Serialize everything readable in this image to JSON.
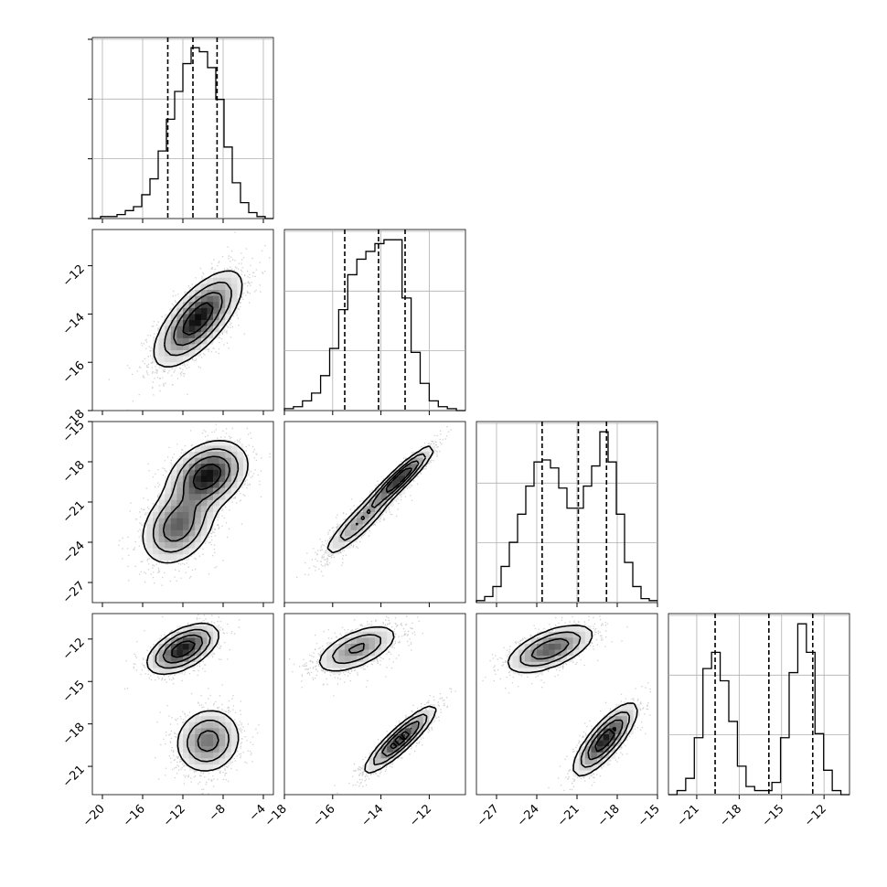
{
  "figure": {
    "title": "",
    "type": "corner plot"
  },
  "chart_data": {
    "type": "corner",
    "grid": true,
    "colors": {
      "hist": "#000000",
      "quantile": "#000000",
      "contour": "#000000",
      "density_dark": "#000000",
      "grid": "#b0b0b0",
      "points": "#555555"
    },
    "params": [
      {
        "name": "",
        "range": [
          -21,
          -3
        ],
        "ticks": [
          -20,
          -16,
          -12,
          -8,
          -4
        ],
        "tick_labels": [
          "−20",
          "−16",
          "−12",
          "−8",
          "−4"
        ],
        "quantiles": [
          -13.5,
          -11.0,
          -8.6
        ],
        "hist": [
          0,
          1,
          1,
          2,
          4,
          6,
          12,
          20,
          34,
          50,
          64,
          78,
          86,
          84,
          76,
          60,
          36,
          18,
          8,
          3,
          1,
          0
        ]
      },
      {
        "name": "",
        "range": [
          -18,
          -10.5
        ],
        "ticks": [
          -18,
          -16,
          -14,
          -12
        ],
        "tick_labels": [
          "−18",
          "−16",
          "−14",
          "−12"
        ],
        "quantiles": [
          -15.5,
          -14.1,
          -13.0
        ],
        "hist": [
          1,
          2,
          5,
          9,
          18,
          32,
          52,
          70,
          78,
          82,
          86,
          88,
          88,
          58,
          30,
          14,
          5,
          2,
          1,
          0
        ]
      },
      {
        "name": "",
        "range": [
          -28.5,
          -15
        ],
        "ticks": [
          -27,
          -24,
          -21,
          -18,
          -15
        ],
        "tick_labels": [
          "−27",
          "−24",
          "−21",
          "−18",
          "−15"
        ],
        "quantiles": [
          -23.6,
          -20.9,
          -18.8
        ],
        "hist": [
          1,
          3,
          8,
          18,
          30,
          44,
          58,
          70,
          71,
          67,
          57,
          47,
          47,
          58,
          68,
          85,
          70,
          44,
          20,
          8,
          2,
          1
        ]
      },
      {
        "name": "",
        "range": [
          -23,
          -10.2
        ],
        "ticks": [
          -21,
          -18,
          -15,
          -12
        ],
        "tick_labels": [
          "−21",
          "−18",
          "−15",
          "−12"
        ],
        "quantiles": [
          -19.7,
          -15.9,
          -12.8
        ],
        "hist": [
          0,
          2,
          8,
          28,
          62,
          70,
          56,
          36,
          14,
          4,
          2,
          2,
          6,
          28,
          60,
          84,
          70,
          30,
          12,
          2,
          0
        ]
      }
    ],
    "pairs": [
      {
        "row": 1,
        "col": 0,
        "modes": [
          {
            "mean": [
              -10.5,
              -14.2
            ],
            "sd": [
              2.2,
              1.0
            ],
            "rho": 0.7,
            "w": 1
          }
        ]
      },
      {
        "row": 2,
        "col": 0,
        "modes": [
          {
            "mean": [
              -9.5,
              -19.0
            ],
            "sd": [
              2.0,
              1.3
            ],
            "rho": 0.3,
            "w": 0.55
          },
          {
            "mean": [
              -12.5,
              -22.8
            ],
            "sd": [
              1.9,
              1.5
            ],
            "rho": 0.3,
            "w": 0.45
          }
        ]
      },
      {
        "row": 2,
        "col": 1,
        "modes": [
          {
            "mean": [
              -13.2,
              -19.2
            ],
            "sd": [
              0.7,
              1.2
            ],
            "rho": 0.93,
            "w": 0.55
          },
          {
            "mean": [
              -14.9,
              -22.5
            ],
            "sd": [
              0.8,
              1.4
            ],
            "rho": 0.9,
            "w": 0.45
          }
        ]
      },
      {
        "row": 3,
        "col": 0,
        "modes": [
          {
            "mean": [
              -12.0,
              -12.7
            ],
            "sd": [
              1.8,
              0.9
            ],
            "rho": 0.55,
            "w": 0.5
          },
          {
            "mean": [
              -9.5,
              -19.2
            ],
            "sd": [
              1.7,
              1.2
            ],
            "rho": 0.1,
            "w": 0.5
          }
        ]
      },
      {
        "row": 3,
        "col": 1,
        "modes": [
          {
            "mean": [
              -15.0,
              -12.7
            ],
            "sd": [
              0.9,
              0.9
            ],
            "rho": 0.6,
            "w": 0.5
          },
          {
            "mean": [
              -13.2,
              -19.1
            ],
            "sd": [
              0.75,
              1.2
            ],
            "rho": 0.9,
            "w": 0.5
          }
        ]
      },
      {
        "row": 3,
        "col": 2,
        "modes": [
          {
            "mean": [
              -23.0,
              -12.7
            ],
            "sd": [
              1.7,
              0.9
            ],
            "rho": 0.6,
            "w": 0.5
          },
          {
            "mean": [
              -18.9,
              -19.1
            ],
            "sd": [
              1.2,
              1.3
            ],
            "rho": 0.8,
            "w": 0.5
          }
        ]
      }
    ]
  }
}
